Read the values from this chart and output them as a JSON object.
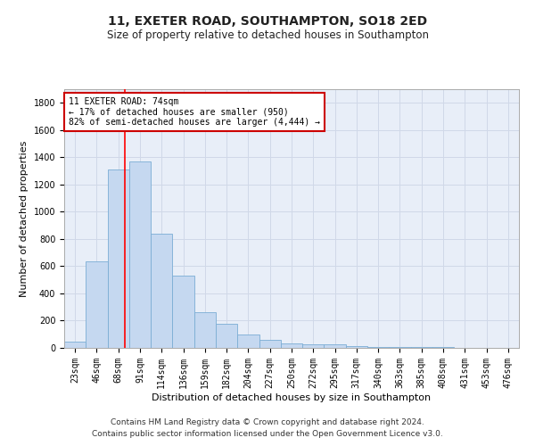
{
  "title": "11, EXETER ROAD, SOUTHAMPTON, SO18 2ED",
  "subtitle": "Size of property relative to detached houses in Southampton",
  "xlabel": "Distribution of detached houses by size in Southampton",
  "ylabel": "Number of detached properties",
  "categories": [
    "23sqm",
    "46sqm",
    "68sqm",
    "91sqm",
    "114sqm",
    "136sqm",
    "159sqm",
    "182sqm",
    "204sqm",
    "227sqm",
    "250sqm",
    "272sqm",
    "295sqm",
    "317sqm",
    "340sqm",
    "363sqm",
    "385sqm",
    "408sqm",
    "431sqm",
    "453sqm",
    "476sqm"
  ],
  "values": [
    45,
    635,
    1310,
    1370,
    840,
    530,
    265,
    180,
    100,
    60,
    30,
    25,
    25,
    15,
    8,
    8,
    5,
    5,
    3,
    2,
    2
  ],
  "bar_color": "#c5d8f0",
  "bar_edge_color": "#7badd4",
  "grid_color": "#d0d8e8",
  "annotation_text_line1": "11 EXETER ROAD: 74sqm",
  "annotation_text_line2": "← 17% of detached houses are smaller (950)",
  "annotation_text_line3": "82% of semi-detached houses are larger (4,444) →",
  "annotation_box_color": "#ffffff",
  "annotation_box_edge_color": "#cc0000",
  "red_line_x": 2.3,
  "ylim": [
    0,
    1900
  ],
  "yticks": [
    0,
    200,
    400,
    600,
    800,
    1000,
    1200,
    1400,
    1600,
    1800
  ],
  "footnote_line1": "Contains HM Land Registry data © Crown copyright and database right 2024.",
  "footnote_line2": "Contains public sector information licensed under the Open Government Licence v3.0.",
  "bg_color": "#e8eef8",
  "title_fontsize": 10,
  "subtitle_fontsize": 8.5,
  "ylabel_fontsize": 8,
  "xlabel_fontsize": 8,
  "tick_fontsize": 7,
  "annot_fontsize": 7
}
